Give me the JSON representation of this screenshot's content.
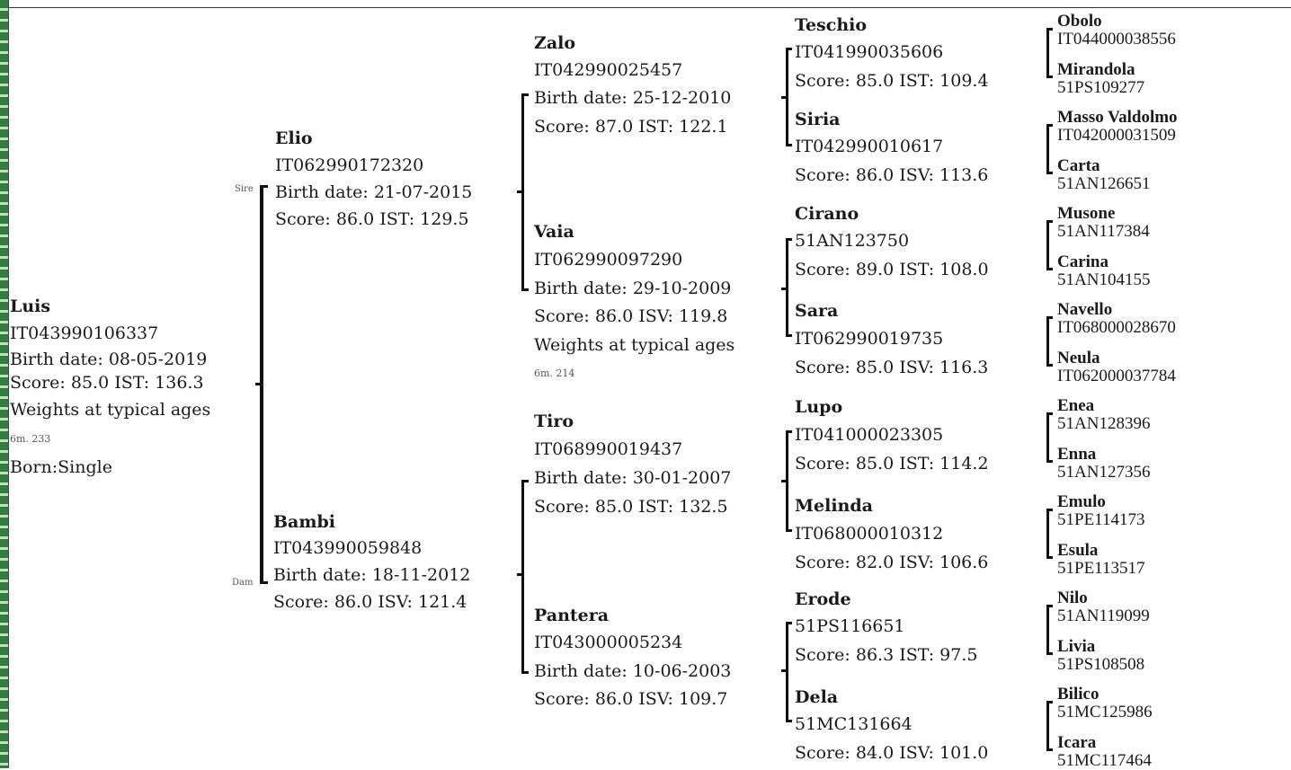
{
  "subject": {
    "name": "Luis",
    "id": "IT043990106337",
    "birth": "Birth date: 08-05-2019",
    "score": "Score: 85.0 IST: 136.3",
    "weights": "Weights at typical ages",
    "weight_value": "6m. 233",
    "born": "Born:Single"
  },
  "parents": {
    "sire_tag": "Sire",
    "dam_tag": "Dam",
    "sire": {
      "name": "Elio",
      "id": "IT062990172320",
      "birth": "Birth date: 21-07-2015",
      "score": "Score: 86.0 IST: 129.5"
    },
    "dam": {
      "name": "Bambi",
      "id": "IT043990059848",
      "birth": "Birth date: 18-11-2012",
      "score": "Score: 86.0 ISV: 121.4"
    }
  },
  "grandparents": [
    {
      "name": "Zalo",
      "id": "IT042990025457",
      "birth": "Birth date: 25-12-2010",
      "score": "Score: 87.0 IST: 122.1"
    },
    {
      "name": "Vaia",
      "id": "IT062990097290",
      "birth": "Birth date: 29-10-2009",
      "score": "Score: 86.0 ISV: 119.8",
      "weights": "Weights at typical ages",
      "weight_value": "6m. 214"
    },
    {
      "name": "Tiro",
      "id": "IT068990019437",
      "birth": "Birth date: 30-01-2007",
      "score": "Score: 85.0 IST: 132.5"
    },
    {
      "name": "Pantera",
      "id": "IT043000005234",
      "birth": "Birth date: 10-06-2003",
      "score": "Score: 86.0 ISV: 109.7"
    }
  ],
  "great_grandparents": [
    {
      "name": "Teschio",
      "id": "IT041990035606",
      "score": "Score: 85.0 IST: 109.4"
    },
    {
      "name": "Siria",
      "id": "IT042990010617",
      "score": "Score: 86.0 ISV: 113.6"
    },
    {
      "name": "Cirano",
      "id": "51AN123750",
      "score": "Score: 89.0 IST: 108.0"
    },
    {
      "name": "Sara",
      "id": "IT062990019735",
      "score": "Score: 85.0 ISV: 116.3"
    },
    {
      "name": "Lupo",
      "id": "IT041000023305",
      "score": "Score: 85.0 IST: 114.2"
    },
    {
      "name": "Melinda",
      "id": "IT068000010312",
      "score": "Score: 82.0 ISV: 106.6"
    },
    {
      "name": "Erode",
      "id": "51PS116651",
      "score": "Score: 86.3 IST:  97.5"
    },
    {
      "name": "Dela",
      "id": "51MC131664",
      "score": "Score: 84.0 ISV: 101.0"
    }
  ],
  "g4": [
    {
      "name": "Obolo",
      "id": "IT044000038556"
    },
    {
      "name": "Mirandola",
      "id": "51PS109277"
    },
    {
      "name": "Masso Valdolmo",
      "id": "IT042000031509"
    },
    {
      "name": "Carta",
      "id": "51AN126651"
    },
    {
      "name": "Musone",
      "id": "51AN117384"
    },
    {
      "name": "Carina",
      "id": "51AN104155"
    },
    {
      "name": "Navello",
      "id": "IT068000028670"
    },
    {
      "name": "Neula",
      "id": "IT062000037784"
    },
    {
      "name": "Enea",
      "id": "51AN128396"
    },
    {
      "name": "Enna",
      "id": "51AN127356"
    },
    {
      "name": "Emulo",
      "id": "51PE114173"
    },
    {
      "name": "Esula",
      "id": "51PE113517"
    },
    {
      "name": "Nilo",
      "id": "51AN119099"
    },
    {
      "name": "Livia",
      "id": "51PS108508"
    },
    {
      "name": "Bilico",
      "id": "51MC125986"
    },
    {
      "name": "Icara",
      "id": "51MC117464"
    }
  ]
}
